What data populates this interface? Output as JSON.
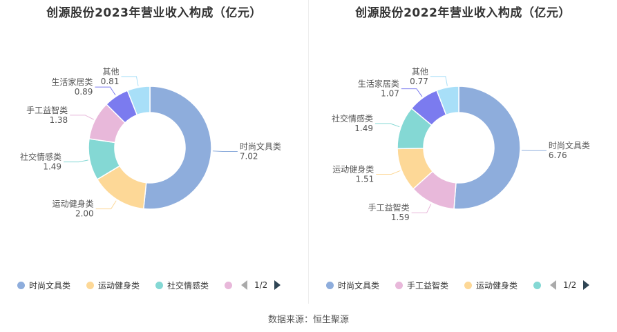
{
  "source": "数据来源：恒生聚源",
  "chart_data": [
    {
      "type": "pie",
      "title": "创源股份2023年营业收入构成（亿元）",
      "slices": [
        {
          "name": "时尚文具类",
          "value": 7.02,
          "label": "7.02",
          "color": "#8eaddc"
        },
        {
          "name": "运动健身类",
          "value": 2.0,
          "label": "2.00",
          "color": "#fdd897"
        },
        {
          "name": "社交情感类",
          "value": 1.49,
          "label": "1.49",
          "color": "#84d8d4"
        },
        {
          "name": "手工益智类",
          "value": 1.38,
          "label": "1.38",
          "color": "#e8b8da"
        },
        {
          "name": "生活家居类",
          "value": 0.89,
          "label": "0.89",
          "color": "#7b7bef"
        },
        {
          "name": "其他",
          "value": 0.81,
          "label": "0.81",
          "color": "#a8dff8"
        }
      ],
      "legend": {
        "placement": "bottom",
        "items": [
          {
            "name": "时尚文具类",
            "color": "#8eaddc"
          },
          {
            "name": "运动健身类",
            "color": "#fdd897"
          },
          {
            "name": "社交情感类",
            "color": "#84d8d4"
          },
          {
            "name": "",
            "color": "#e8b8da"
          }
        ],
        "page": "1/2"
      }
    },
    {
      "type": "pie",
      "title": "创源股份2022年营业收入构成（亿元）",
      "slices": [
        {
          "name": "时尚文具类",
          "value": 6.76,
          "label": "6.76",
          "color": "#8eaddc"
        },
        {
          "name": "手工益智类",
          "value": 1.59,
          "label": "1.59",
          "color": "#e8b8da"
        },
        {
          "name": "运动健身类",
          "value": 1.51,
          "label": "1.51",
          "color": "#fdd897"
        },
        {
          "name": "社交情感类",
          "value": 1.49,
          "label": "1.49",
          "color": "#84d8d4"
        },
        {
          "name": "生活家居类",
          "value": 1.07,
          "label": "1.07",
          "color": "#7b7bef"
        },
        {
          "name": "其他",
          "value": 0.77,
          "label": "0.77",
          "color": "#a8dff8"
        }
      ],
      "legend": {
        "placement": "bottom",
        "items": [
          {
            "name": "时尚文具类",
            "color": "#8eaddc"
          },
          {
            "name": "手工益智类",
            "color": "#e8b8da"
          },
          {
            "name": "运动健身类",
            "color": "#fdd897"
          },
          {
            "name": "",
            "color": "#84d8d4"
          }
        ],
        "page": "1/2"
      }
    }
  ]
}
